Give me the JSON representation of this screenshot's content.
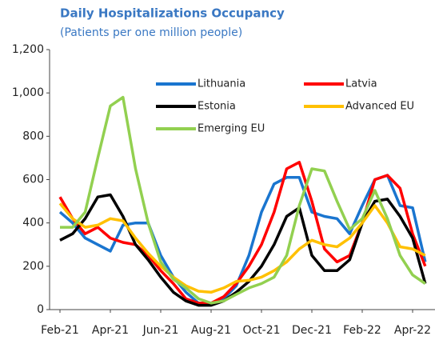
{
  "chart_data": {
    "type": "line",
    "title": "Daily Hospitalizations Occupancy",
    "subtitle": "(Patients per one million people)",
    "categories": [
      "Feb-21",
      null,
      null,
      null,
      "Apr-21",
      null,
      null,
      null,
      "Jun-21",
      null,
      null,
      null,
      "Aug-21",
      null,
      null,
      null,
      "Oct-21",
      null,
      null,
      null,
      "Dec-21",
      null,
      null,
      null,
      "Feb-22",
      null,
      null,
      null,
      "Apr-22",
      null
    ],
    "ylim": [
      0,
      1200
    ],
    "yticks": [
      0,
      200,
      400,
      600,
      800,
      {
        "value": 1000,
        "label": "1,000"
      },
      {
        "value": 1200,
        "label": "1,200"
      }
    ],
    "series": [
      {
        "name": "Lithuania",
        "color": "#1a75cf",
        "values": [
          450,
          400,
          330,
          300,
          270,
          390,
          400,
          400,
          250,
          150,
          80,
          30,
          30,
          50,
          110,
          250,
          450,
          580,
          610,
          610,
          450,
          430,
          420,
          350,
          480,
          600,
          620,
          480,
          470,
          220
        ]
      },
      {
        "name": "Latvia",
        "color": "#ff0000",
        "values": [
          520,
          420,
          350,
          380,
          330,
          310,
          300,
          250,
          180,
          120,
          50,
          30,
          30,
          60,
          120,
          200,
          300,
          450,
          650,
          680,
          500,
          280,
          220,
          250,
          400,
          600,
          620,
          560,
          350,
          200
        ]
      },
      {
        "name": "Estonia",
        "color": "#000000",
        "values": [
          320,
          350,
          420,
          520,
          530,
          430,
          300,
          230,
          150,
          80,
          40,
          20,
          20,
          40,
          80,
          130,
          200,
          300,
          430,
          470,
          250,
          180,
          180,
          230,
          400,
          500,
          510,
          430,
          330,
          120
        ]
      },
      {
        "name": "Advanced EU",
        "color": "#ffc000",
        "values": [
          490,
          420,
          380,
          390,
          420,
          410,
          330,
          260,
          200,
          150,
          110,
          85,
          80,
          100,
          130,
          135,
          150,
          180,
          220,
          280,
          320,
          300,
          290,
          330,
          400,
          480,
          400,
          290,
          280,
          250
        ]
      },
      {
        "name": "Emerging EU",
        "color": "#92d050",
        "values": [
          380,
          380,
          450,
          700,
          940,
          980,
          650,
          400,
          220,
          140,
          100,
          50,
          30,
          40,
          70,
          100,
          120,
          150,
          250,
          480,
          650,
          640,
          500,
          370,
          420,
          550,
          420,
          250,
          160,
          120
        ]
      }
    ]
  }
}
